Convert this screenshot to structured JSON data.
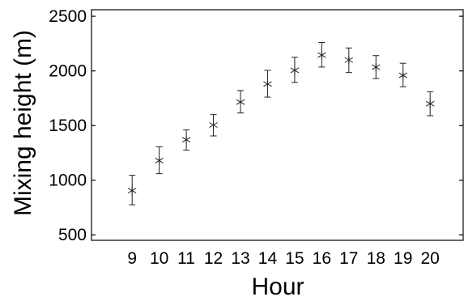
{
  "chart_data": {
    "type": "scatter",
    "title": "",
    "xlabel": "Hour",
    "ylabel": "Mixing height (m)",
    "x": [
      9,
      10,
      11,
      12,
      13,
      14,
      15,
      16,
      17,
      18,
      19,
      20
    ],
    "y": [
      905,
      1180,
      1370,
      1505,
      1715,
      1880,
      2005,
      2145,
      2100,
      2035,
      1960,
      1700
    ],
    "y_lower": [
      775,
      1060,
      1275,
      1405,
      1615,
      1760,
      1895,
      2035,
      1985,
      1930,
      1855,
      1590
    ],
    "y_upper": [
      1045,
      1305,
      1460,
      1600,
      1820,
      2005,
      2125,
      2260,
      2210,
      2140,
      2070,
      1810
    ],
    "xlim": [
      7.5,
      21.25
    ],
    "ylim": [
      450,
      2560
    ],
    "xticks": [
      9,
      10,
      11,
      12,
      13,
      14,
      15,
      16,
      17,
      18,
      19,
      20
    ],
    "yticks": [
      500,
      1000,
      1500,
      2000,
      2500
    ],
    "marker": "asterisk",
    "grid": false,
    "box": true
  }
}
